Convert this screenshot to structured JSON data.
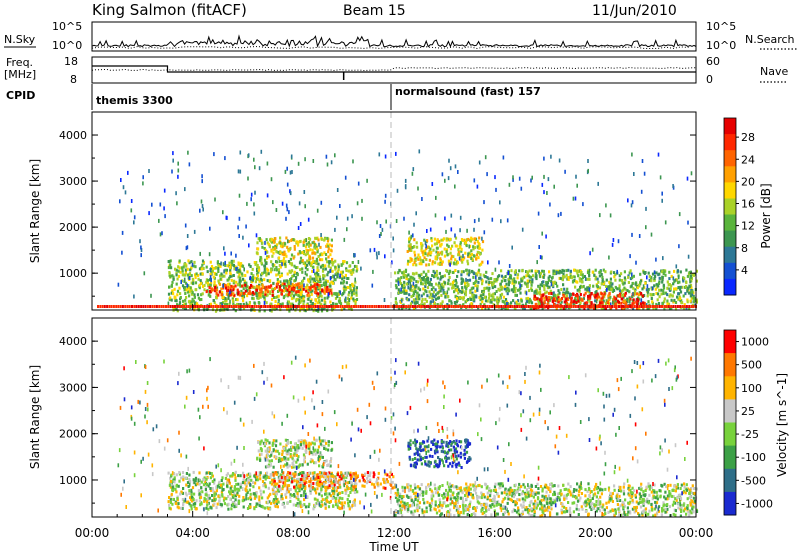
{
  "header": {
    "station": "King Salmon (fitACF)",
    "beam": "Beam 15",
    "date": "11/Jun/2010"
  },
  "noise_panel": {
    "left_label": "N.Sky",
    "right_label": "N.Search",
    "left_ticks": [
      "10^5",
      "10^0"
    ],
    "right_ticks": [
      "10^5",
      "10^0"
    ]
  },
  "freq_panel": {
    "left_label_line1": "Freq.",
    "left_label_line2": "[MHz]",
    "right_label": "Nave",
    "left_ticks": [
      "18",
      "8"
    ],
    "right_ticks": [
      "60",
      "0"
    ]
  },
  "cpid_panel": {
    "label": "CPID",
    "segments": [
      "themis 3300",
      "normalsound (fast) 157"
    ]
  },
  "chart_data": [
    {
      "type": "heatmap",
      "title": "Power",
      "ylabel": "Slant Range [km]",
      "y_ticks": [
        "1000",
        "2000",
        "3000",
        "4000"
      ],
      "ylim": [
        200,
        4500
      ],
      "xlim": [
        0,
        24
      ],
      "colorbar_label": "Power [dB]",
      "colorbar_ticks": [
        "4",
        "8",
        "12",
        "16",
        "20",
        "24",
        "28"
      ],
      "colorscale": [
        "#0a28ff",
        "#1450d2",
        "#2d7896",
        "#3c9650",
        "#5ab43c",
        "#aad228",
        "#ffd700",
        "#ffa000",
        "#ff6400",
        "#ff2800",
        "#e60000"
      ],
      "regions": [
        {
          "t": [
            3.0,
            10.5
          ],
          "r": [
            200,
            1300
          ],
          "level": 0.45
        },
        {
          "t": [
            4.5,
            9.5
          ],
          "r": [
            550,
            800
          ],
          "level": 0.85
        },
        {
          "t": [
            6.5,
            9.5
          ],
          "r": [
            1300,
            1800
          ],
          "level": 0.55
        },
        {
          "t": [
            12.5,
            15.5
          ],
          "r": [
            1200,
            1800
          ],
          "level": 0.55
        },
        {
          "t": [
            12.0,
            24.0
          ],
          "r": [
            250,
            1100
          ],
          "level": 0.4
        },
        {
          "t": [
            17.5,
            22.0
          ],
          "r": [
            250,
            600
          ],
          "level": 0.9
        }
      ]
    },
    {
      "type": "heatmap",
      "title": "Velocity",
      "ylabel": "Slant Range [km]",
      "y_ticks": [
        "1000",
        "2000",
        "3000",
        "4000"
      ],
      "ylim": [
        200,
        4500
      ],
      "xlim": [
        0,
        24
      ],
      "colorbar_label": "Velocity [m s^-1]",
      "colorbar_ticks": [
        "1000",
        "500",
        "100",
        "25",
        "-25",
        "-100",
        "-500",
        "-1000"
      ],
      "colorscale": [
        "#1a2ad0",
        "#2e6e88",
        "#3ca046",
        "#78d23c",
        "#c8c8c8",
        "#ffb400",
        "#ff7800",
        "#ff0000"
      ],
      "regions": [
        {
          "t": [
            3.0,
            10.5
          ],
          "r": [
            400,
            1200
          ],
          "level": 0.5
        },
        {
          "t": [
            7.0,
            12.0
          ],
          "r": [
            850,
            1200
          ],
          "level": 0.75
        },
        {
          "t": [
            6.5,
            9.5
          ],
          "r": [
            1300,
            1900
          ],
          "level": 0.5
        },
        {
          "t": [
            12.5,
            15.0
          ],
          "r": [
            1300,
            1900
          ],
          "level": 0.05
        },
        {
          "t": [
            12.0,
            24.0
          ],
          "r": [
            250,
            950
          ],
          "level": 0.5
        }
      ]
    }
  ],
  "x_axis": {
    "ticks": [
      "00:00",
      "04:00",
      "08:00",
      "12:00",
      "16:00",
      "20:00",
      "00:00"
    ],
    "label": "Time UT"
  }
}
